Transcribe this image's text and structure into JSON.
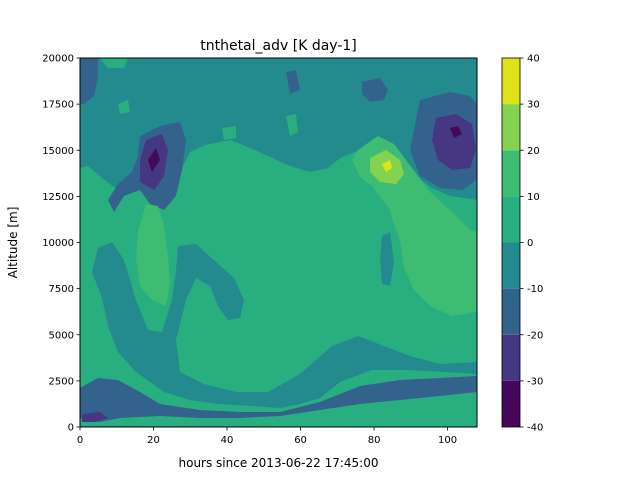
{
  "chart_data": {
    "type": "contourf",
    "title": "tnthetal_adv [K day-1]",
    "xlabel": "hours since 2013-06-22 17:45:00",
    "ylabel": "Altitude [m]",
    "xlim": [
      0,
      108
    ],
    "ylim": [
      0,
      20000
    ],
    "x_ticks": [
      "0",
      "20",
      "40",
      "60",
      "80",
      "100"
    ],
    "x_tick_values": [
      0,
      20,
      40,
      60,
      80,
      100
    ],
    "y_ticks": [
      "0",
      "2500",
      "5000",
      "7500",
      "10000",
      "12500",
      "15000",
      "17500",
      "20000"
    ],
    "y_tick_values": [
      0,
      2500,
      5000,
      7500,
      10000,
      12500,
      15000,
      17500,
      20000
    ],
    "colorbar": {
      "levels": [
        -40,
        -30,
        -20,
        -10,
        0,
        10,
        20,
        30,
        40
      ],
      "tick_labels": [
        "-40",
        "-30",
        "-20",
        "-10",
        "0",
        "10",
        "20",
        "30",
        "40"
      ],
      "colors": [
        "#45085b",
        "#453781",
        "#33638d",
        "#238a8d",
        "#29af7f",
        "#3fbc73",
        "#83d350",
        "#dde318"
      ]
    },
    "background_band": "0 to 10",
    "regions": [
      {
        "band": "-10 to 0",
        "x": [
          0,
          108
        ],
        "y": [
          15000,
          20000
        ]
      },
      {
        "band": "-20 to -10",
        "x": [
          0,
          6
        ],
        "y": [
          17000,
          20000
        ]
      },
      {
        "band": "-20 to -10",
        "x": [
          80,
          88
        ],
        "y": [
          17500,
          19500
        ]
      },
      {
        "band": "-20 to -10",
        "x": [
          13,
          23
        ],
        "y": [
          11500,
          16000
        ]
      },
      {
        "band": "-30 to -20",
        "x": [
          16,
          21
        ],
        "y": [
          13000,
          15500
        ]
      },
      {
        "band": "-40 to -30",
        "x": [
          19,
          21
        ],
        "y": [
          14000,
          14800
        ]
      },
      {
        "band": "-20 to -10",
        "x": [
          95,
          108
        ],
        "y": [
          13500,
          17500
        ]
      },
      {
        "band": "-30 to -20",
        "x": [
          97,
          106
        ],
        "y": [
          14000,
          17000
        ]
      },
      {
        "band": "-40 to -30",
        "x": [
          101,
          103
        ],
        "y": [
          15500,
          16000
        ]
      },
      {
        "band": "0 to 10",
        "x": [
          75,
          108
        ],
        "y": [
          7000,
          14500
        ]
      },
      {
        "band": "10 to 20",
        "x": [
          77,
          108
        ],
        "y": [
          6500,
          14500
        ]
      },
      {
        "band": "20 to 30",
        "x": [
          79,
          87
        ],
        "y": [
          13000,
          15000
        ]
      },
      {
        "band": "30 to 40",
        "x": [
          83,
          85
        ],
        "y": [
          13800,
          14300
        ]
      },
      {
        "band": "10 to 20",
        "x": [
          15,
          24
        ],
        "y": [
          6500,
          12000
        ]
      },
      {
        "band": "-10 to 0",
        "x": [
          20,
          70
        ],
        "y": [
          1000,
          10000
        ]
      },
      {
        "band": "-20 to -10",
        "x": [
          0,
          22
        ],
        "y": [
          0,
          2500
        ]
      },
      {
        "band": "-20 to -10",
        "x": [
          50,
          108
        ],
        "y": [
          1500,
          3000
        ]
      },
      {
        "band": "-30 to -20",
        "x": [
          0,
          8
        ],
        "y": [
          100,
          600
        ]
      }
    ]
  }
}
